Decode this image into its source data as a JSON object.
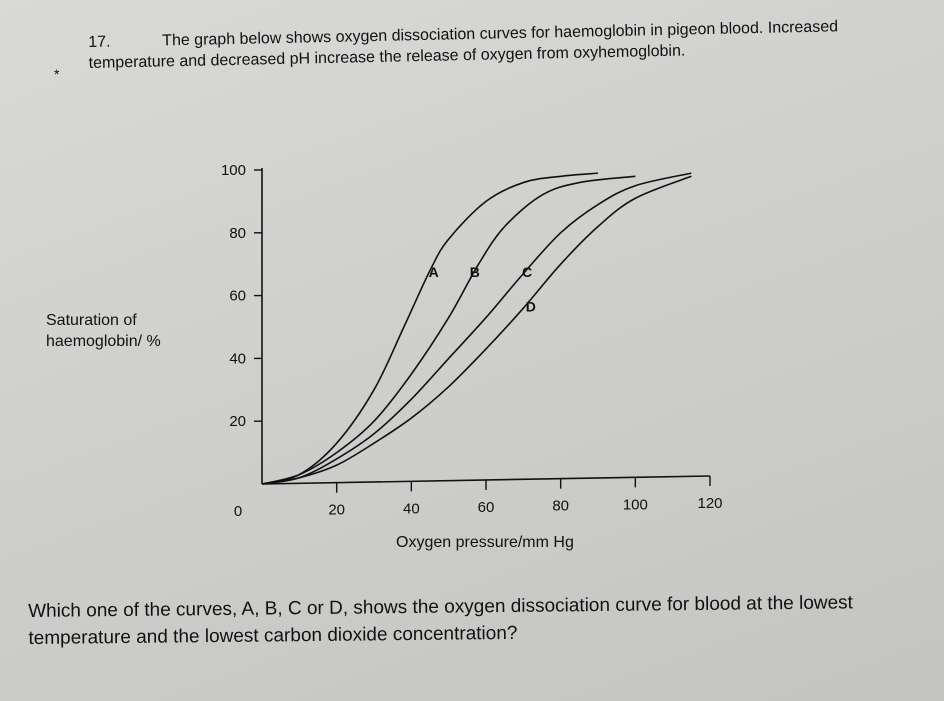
{
  "question": {
    "number": "17.",
    "intro": "The graph below shows oxygen dissociation curves for haemoglobin in pigeon blood. Increased temperature and decreased pH increase the release of oxygen from oxyhemoglobin.",
    "bullet": "*",
    "prompt": "Which one of the curves, A, B, C or D, shows the oxygen dissociation curve for blood at the lowest temperature and the lowest carbon dioxide concentration?"
  },
  "chart_data": {
    "type": "line",
    "xlabel": "Oxygen pressure/mm Hg",
    "ylabel_line1": "Saturation of",
    "ylabel_line2": "haemoglobin/ %",
    "xlim": [
      0,
      120
    ],
    "ylim": [
      0,
      100
    ],
    "x_ticks": [
      "0",
      "20",
      "40",
      "60",
      "80",
      "100",
      "120"
    ],
    "y_ticks": [
      "20",
      "40",
      "60",
      "80",
      "100"
    ],
    "grid": false,
    "series": [
      {
        "name": "A",
        "x": [
          0,
          10,
          20,
          30,
          38,
          45,
          50,
          60,
          70,
          80,
          90
        ],
        "y": [
          0,
          3,
          13,
          30,
          50,
          68,
          78,
          90,
          96,
          98,
          99
        ]
      },
      {
        "name": "B",
        "x": [
          0,
          10,
          20,
          30,
          40,
          50,
          58,
          65,
          75,
          85,
          100
        ],
        "y": [
          0,
          3,
          10,
          20,
          35,
          53,
          70,
          82,
          92,
          96,
          98
        ]
      },
      {
        "name": "C",
        "x": [
          0,
          10,
          20,
          30,
          40,
          50,
          60,
          70,
          80,
          90,
          100,
          115
        ],
        "y": [
          0,
          2,
          8,
          16,
          27,
          40,
          53,
          67,
          80,
          89,
          95,
          99
        ]
      },
      {
        "name": "D",
        "x": [
          0,
          10,
          20,
          30,
          40,
          50,
          60,
          70,
          80,
          90,
          100,
          115
        ],
        "y": [
          0,
          2,
          6,
          13,
          21,
          31,
          43,
          56,
          70,
          82,
          91,
          98
        ]
      }
    ],
    "labels": [
      {
        "text": "A",
        "x": 46,
        "y": 66
      },
      {
        "text": "B",
        "x": 57,
        "y": 66
      },
      {
        "text": "C",
        "x": 71,
        "y": 66
      },
      {
        "text": "D",
        "x": 72,
        "y": 55
      }
    ]
  }
}
